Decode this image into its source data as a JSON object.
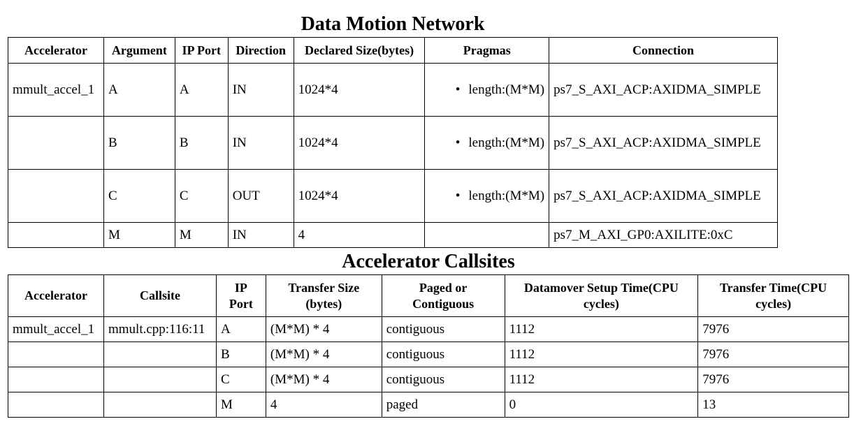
{
  "dmn": {
    "title": "Data Motion Network",
    "headers": {
      "accelerator": "Accelerator",
      "argument": "Argument",
      "ip_port": "IP Port",
      "direction": "Direction",
      "declared_size": "Declared Size(bytes)",
      "pragmas": "Pragmas",
      "connection": "Connection"
    },
    "rows": [
      {
        "accelerator": "mmult_accel_1",
        "argument": "A",
        "ip_port": "A",
        "direction": "IN",
        "declared_size": "1024*4",
        "pragma": "length:(M*M)",
        "connection": "ps7_S_AXI_ACP:AXIDMA_SIMPLE"
      },
      {
        "accelerator": "",
        "argument": "B",
        "ip_port": "B",
        "direction": "IN",
        "declared_size": "1024*4",
        "pragma": "length:(M*M)",
        "connection": "ps7_S_AXI_ACP:AXIDMA_SIMPLE"
      },
      {
        "accelerator": "",
        "argument": "C",
        "ip_port": "C",
        "direction": "OUT",
        "declared_size": "1024*4",
        "pragma": "length:(M*M)",
        "connection": "ps7_S_AXI_ACP:AXIDMA_SIMPLE"
      },
      {
        "accelerator": "",
        "argument": "M",
        "ip_port": "M",
        "direction": "IN",
        "declared_size": "4",
        "pragma": "",
        "connection": "ps7_M_AXI_GP0:AXILITE:0xC"
      }
    ]
  },
  "acs": {
    "title": "Accelerator Callsites",
    "headers": {
      "accelerator": "Accelerator",
      "callsite": "Callsite",
      "ip_port_1": "IP",
      "ip_port_2": "Port",
      "transfer_size_1": "Transfer Size",
      "transfer_size_2": "(bytes)",
      "paged_1": "Paged or",
      "paged_2": "Contiguous",
      "setup_1": "Datamover Setup Time(CPU",
      "setup_2": "cycles)",
      "transfer_time_1": "Transfer Time(CPU",
      "transfer_time_2": "cycles)"
    },
    "rows": [
      {
        "accelerator": "mmult_accel_1",
        "callsite": "mmult.cpp:116:11",
        "ip_port": "A",
        "transfer_size": "(M*M) * 4",
        "paged": "contiguous",
        "setup_time": "1112",
        "transfer_time": "7976"
      },
      {
        "accelerator": "",
        "callsite": "",
        "ip_port": "B",
        "transfer_size": "(M*M) * 4",
        "paged": "contiguous",
        "setup_time": "1112",
        "transfer_time": "7976"
      },
      {
        "accelerator": "",
        "callsite": "",
        "ip_port": "C",
        "transfer_size": "(M*M) * 4",
        "paged": "contiguous",
        "setup_time": "1112",
        "transfer_time": "7976"
      },
      {
        "accelerator": "",
        "callsite": "",
        "ip_port": "M",
        "transfer_size": "4",
        "paged": "paged",
        "setup_time": "0",
        "transfer_time": "13"
      }
    ]
  }
}
